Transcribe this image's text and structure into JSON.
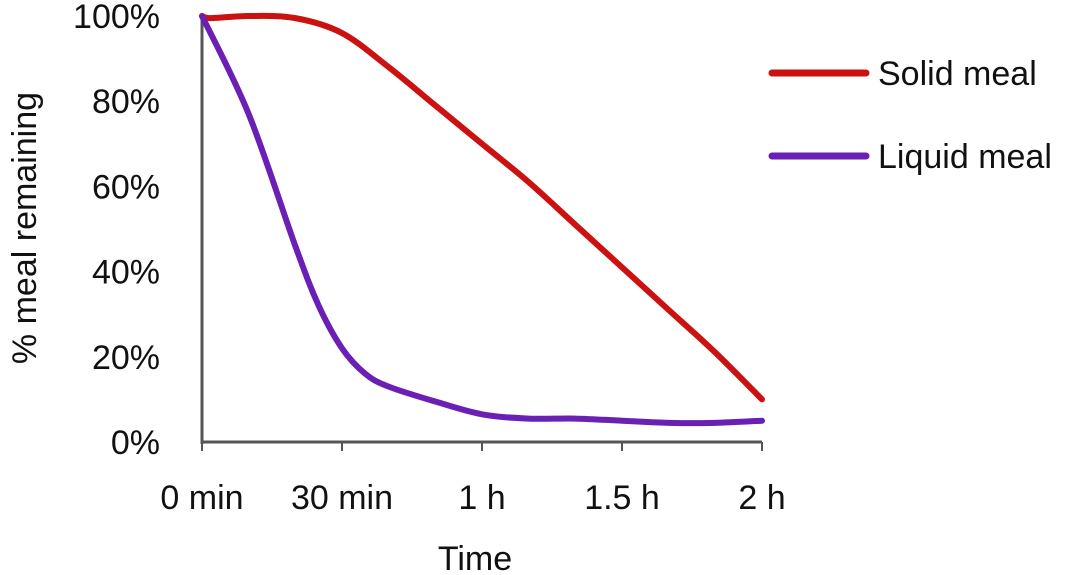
{
  "chart_data": {
    "type": "line",
    "xlabel": "Time",
    "ylabel": "% meal remaining",
    "x_ticks": [
      "0 min",
      "30 min",
      "1 h",
      "1.5 h",
      "2 h"
    ],
    "x_tick_values": [
      0,
      30,
      60,
      90,
      120
    ],
    "y_ticks": [
      "0%",
      "20%",
      "40%",
      "60%",
      "80%",
      "100%"
    ],
    "y_tick_values": [
      0,
      20,
      40,
      60,
      80,
      100
    ],
    "xlim": [
      0,
      120
    ],
    "ylim": [
      0,
      100
    ],
    "grid": false,
    "legend_position": "top-right",
    "series": [
      {
        "name": "Solid meal",
        "color": "#cc1111",
        "x": [
          0,
          2,
          10,
          20,
          30,
          40,
          50,
          60,
          70,
          80,
          90,
          100,
          110,
          120
        ],
        "y": [
          100,
          99.5,
          100,
          99.5,
          96,
          88,
          79,
          70,
          61,
          51,
          41,
          31,
          21,
          10
        ]
      },
      {
        "name": "Liquid meal",
        "color": "#6a1fb5",
        "x": [
          0,
          10,
          20,
          25,
          30,
          35,
          40,
          50,
          60,
          70,
          80,
          90,
          100,
          110,
          120
        ],
        "y": [
          100,
          77,
          46,
          32,
          22,
          16,
          13,
          9.5,
          6.5,
          5.5,
          5.5,
          5,
          4.5,
          4.5,
          5
        ]
      }
    ]
  }
}
